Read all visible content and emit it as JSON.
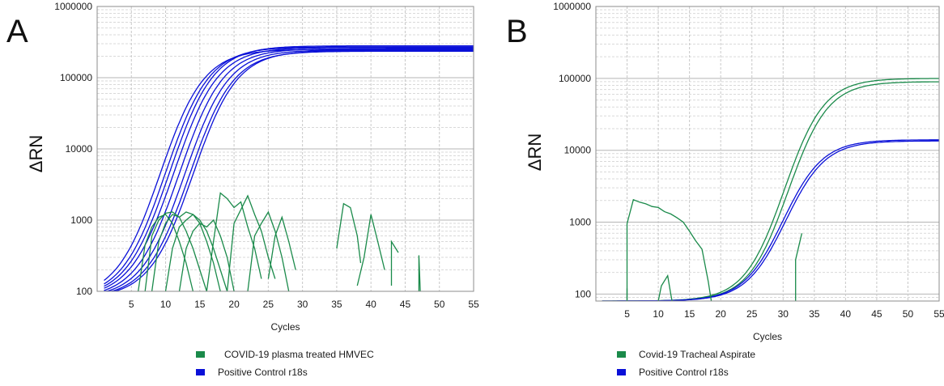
{
  "chart_data": [
    {
      "panel_label": "A",
      "type": "line",
      "xlabel": "Cycles",
      "ylabel": "ΔRN",
      "y_scale": "log",
      "xlim": [
        0,
        55
      ],
      "ylim": [
        100,
        1000000
      ],
      "x_ticks": [
        5,
        10,
        15,
        20,
        25,
        30,
        35,
        40,
        45,
        50,
        55
      ],
      "y_ticks": [
        {
          "value": 100,
          "label": "100"
        },
        {
          "value": 1000,
          "label": "1000"
        },
        {
          "value": 10000,
          "label": "10000"
        },
        {
          "value": 100000,
          "label": "100000"
        },
        {
          "value": 1000000,
          "label": "1000000"
        }
      ],
      "grid": true,
      "legend": {
        "position": "bottom",
        "entries": [
          {
            "label": "COVID-19 plasma treated HMVEC",
            "color": "#1a8a4a"
          },
          {
            "label": "Positive Control r18s",
            "color": "#0a10d8"
          }
        ]
      },
      "series": [
        {
          "group": "Positive Control r18s",
          "color": "#0a10d8",
          "kind": "sigmoid",
          "cts": [
            9.2,
            10.0,
            10.6,
            11.2,
            12.0,
            12.8,
            13.5,
            14.0
          ],
          "plateau": [
            250000,
            270000,
            280000,
            265000,
            255000,
            245000,
            235000,
            240000
          ]
        },
        {
          "group": "COVID-19 plasma treated HMVEC",
          "color": "#1a8a4a",
          "kind": "noise",
          "points": [
            [
              [
                6,
                100
              ],
              [
                7,
                450
              ],
              [
                8,
                800
              ],
              [
                9,
                1100
              ],
              [
                10,
                1200
              ],
              [
                11,
                900
              ],
              [
                12,
                500
              ],
              [
                13,
                250
              ],
              [
                14,
                100
              ]
            ],
            [
              [
                7,
                100
              ],
              [
                8,
                600
              ],
              [
                9,
                1000
              ],
              [
                10,
                1250
              ],
              [
                11,
                1300
              ],
              [
                12,
                1100
              ],
              [
                13,
                700
              ],
              [
                14,
                400
              ],
              [
                15,
                200
              ],
              [
                16,
                100
              ]
            ],
            [
              [
                8,
                100
              ],
              [
                9,
                500
              ],
              [
                10,
                900
              ],
              [
                11,
                1200
              ],
              [
                12,
                1100
              ],
              [
                13,
                1300
              ],
              [
                14,
                1200
              ],
              [
                15,
                900
              ],
              [
                16,
                500
              ],
              [
                17,
                250
              ],
              [
                18,
                100
              ]
            ],
            [
              [
                10,
                100
              ],
              [
                11,
                400
              ],
              [
                12,
                800
              ],
              [
                13,
                1000
              ],
              [
                14,
                1200
              ],
              [
                15,
                1000
              ],
              [
                16,
                700
              ],
              [
                17,
                400
              ],
              [
                18,
                200
              ],
              [
                19,
                100
              ]
            ],
            [
              [
                12,
                100
              ],
              [
                13,
                400
              ],
              [
                14,
                700
              ],
              [
                15,
                900
              ],
              [
                16,
                800
              ],
              [
                17,
                1000
              ],
              [
                18,
                600
              ],
              [
                19,
                300
              ],
              [
                20,
                100
              ]
            ],
            [
              [
                16,
                100
              ],
              [
                17,
                500
              ],
              [
                18,
                2400
              ],
              [
                19,
                2000
              ],
              [
                20,
                1500
              ],
              [
                21,
                1800
              ],
              [
                22,
                800
              ],
              [
                23,
                400
              ],
              [
                24,
                150
              ]
            ],
            [
              [
                19,
                100
              ],
              [
                20,
                900
              ],
              [
                21,
                1400
              ],
              [
                22,
                2200
              ],
              [
                23,
                1200
              ],
              [
                24,
                700
              ],
              [
                25,
                300
              ],
              [
                26,
                150
              ]
            ],
            [
              [
                22,
                100
              ],
              [
                23,
                600
              ],
              [
                24,
                900
              ],
              [
                25,
                1300
              ],
              [
                26,
                700
              ],
              [
                27,
                300
              ],
              [
                28,
                100
              ]
            ],
            [
              [
                25,
                150
              ],
              [
                26,
                600
              ],
              [
                27,
                1100
              ],
              [
                28,
                500
              ],
              [
                29,
                200
              ]
            ],
            [
              [
                35,
                400
              ],
              [
                36,
                1700
              ],
              [
                37,
                1500
              ],
              [
                38,
                600
              ],
              [
                38.5,
                250
              ]
            ],
            [
              [
                38,
                120
              ],
              [
                39,
                300
              ],
              [
                40,
                1200
              ],
              [
                41,
                500
              ],
              [
                42,
                200
              ]
            ],
            [
              [
                43,
                120
              ],
              [
                43,
                500
              ],
              [
                44,
                350
              ]
            ],
            [
              [
                47,
                100
              ],
              [
                47,
                320
              ],
              [
                47.2,
                100
              ]
            ]
          ]
        }
      ]
    },
    {
      "panel_label": "B",
      "type": "line",
      "xlabel": "Cycles",
      "ylabel": "ΔRN",
      "y_scale": "log",
      "xlim": [
        0,
        55
      ],
      "ylim": [
        80,
        1000000
      ],
      "x_ticks": [
        5,
        10,
        15,
        20,
        25,
        30,
        35,
        40,
        45,
        50,
        55
      ],
      "y_ticks": [
        {
          "value": 100,
          "label": "100"
        },
        {
          "value": 1000,
          "label": "1000"
        },
        {
          "value": 10000,
          "label": "10000"
        },
        {
          "value": 100000,
          "label": "100000"
        },
        {
          "value": 1000000,
          "label": "1000000"
        }
      ],
      "grid": true,
      "legend": {
        "position": "bottom",
        "entries": [
          {
            "label": "Covid-19 Tracheal Aspirate",
            "color": "#1a8a4a"
          },
          {
            "label": "Positive Control r18s",
            "color": "#0a10d8"
          }
        ]
      },
      "series": [
        {
          "group": "Covid-19 Tracheal Aspirate",
          "color": "#1a8a4a",
          "kind": "sigmoid",
          "cts": [
            30.2,
            30.8
          ],
          "plateau": [
            100000,
            90000
          ]
        },
        {
          "group": "Positive Control r18s",
          "color": "#0a10d8",
          "kind": "sigmoid",
          "cts": [
            30.0,
            30.4
          ],
          "plateau": [
            14000,
            13500
          ]
        },
        {
          "group": "Covid-19 Tracheal Aspirate",
          "color": "#1a8a4a",
          "kind": "noise",
          "points": [
            [
              [
                5,
                80
              ],
              [
                5,
                950
              ],
              [
                6,
                2050
              ],
              [
                7,
                1900
              ],
              [
                8,
                1800
              ],
              [
                9,
                1650
              ],
              [
                10,
                1600
              ],
              [
                11,
                1400
              ],
              [
                12,
                1300
              ],
              [
                13,
                1150
              ],
              [
                14,
                1000
              ],
              [
                15,
                750
              ],
              [
                16,
                550
              ],
              [
                17,
                420
              ],
              [
                18,
                150
              ],
              [
                18.5,
                80
              ]
            ],
            [
              [
                5,
                80
              ],
              [
                5,
                120
              ]
            ],
            [
              [
                10,
                80
              ],
              [
                10.5,
                130
              ],
              [
                11.5,
                180
              ],
              [
                12,
                100
              ],
              [
                12.2,
                80
              ]
            ],
            [
              [
                32,
                80
              ],
              [
                32,
                300
              ],
              [
                33,
                700
              ]
            ]
          ]
        }
      ]
    }
  ]
}
